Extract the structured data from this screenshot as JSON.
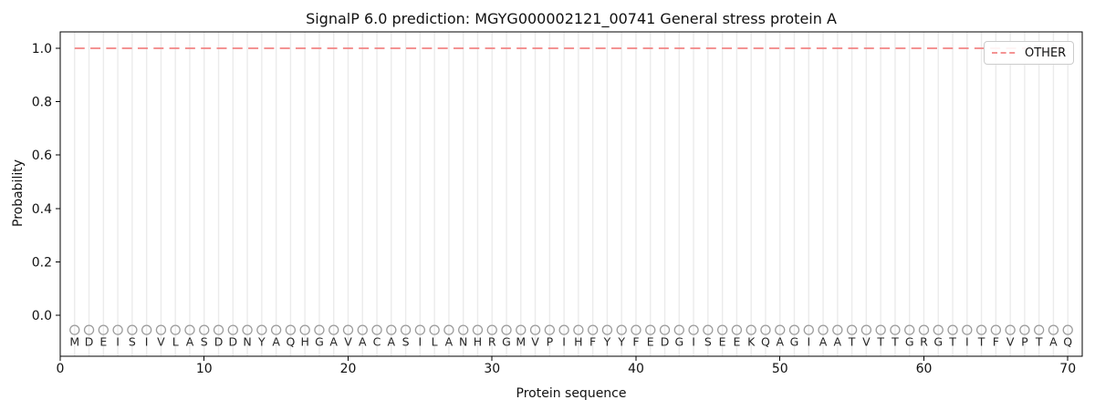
{
  "chart_data": {
    "type": "line",
    "title": "SignalP 6.0 prediction: MGYG000002121_00741 General stress protein A",
    "xlabel": "Protein sequence",
    "ylabel": "Probability",
    "xlim": [
      0,
      71
    ],
    "ylim": [
      -0.15,
      1.06
    ],
    "x_ticks": [
      0,
      10,
      20,
      30,
      40,
      50,
      60,
      70
    ],
    "y_ticks": [
      0.0,
      0.2,
      0.4,
      0.6,
      0.8,
      1.0
    ],
    "y_tick_labels": [
      "0.0",
      "0.2",
      "0.4",
      "0.6",
      "0.8",
      "1.0"
    ],
    "grid": "light vertical gridline at every residue position",
    "legend_position": "upper right",
    "legend": {
      "entries": [
        {
          "label": "OTHER",
          "linestyle": "dashed",
          "color": "#f28484"
        }
      ]
    },
    "sequence": "MDEISIVLASDDNYAQHGAVACASILANHRGMVPIHFYYFEDGISEEKQAGIAATVTTGRGTITFVPTAQ",
    "series": [
      {
        "name": "OTHER",
        "color": "#f28484",
        "linestyle": "dashed",
        "x_start": 1,
        "values": [
          1.0,
          1.0,
          1.0,
          1.0,
          1.0,
          1.0,
          1.0,
          1.0,
          1.0,
          1.0,
          1.0,
          1.0,
          1.0,
          1.0,
          1.0,
          1.0,
          1.0,
          1.0,
          1.0,
          1.0,
          1.0,
          1.0,
          1.0,
          1.0,
          1.0,
          1.0,
          1.0,
          1.0,
          1.0,
          1.0,
          1.0,
          1.0,
          1.0,
          1.0,
          1.0,
          1.0,
          1.0,
          1.0,
          1.0,
          1.0,
          1.0,
          1.0,
          1.0,
          1.0,
          1.0,
          1.0,
          1.0,
          1.0,
          1.0,
          1.0,
          1.0,
          1.0,
          1.0,
          1.0,
          1.0,
          1.0,
          1.0,
          1.0,
          1.0,
          1.0,
          1.0,
          1.0,
          1.0,
          1.0,
          1.0,
          1.0,
          1.0,
          1.0,
          1.0,
          1.0
        ]
      }
    ],
    "residue_markers": {
      "symbol": "open-circle",
      "color": "#9c9c9c",
      "y": -0.055
    }
  },
  "style": {
    "grid_color": "#ebebeb",
    "spine_color": "#000000",
    "letter_color": "#262626",
    "tick_label_color": "#111111"
  }
}
